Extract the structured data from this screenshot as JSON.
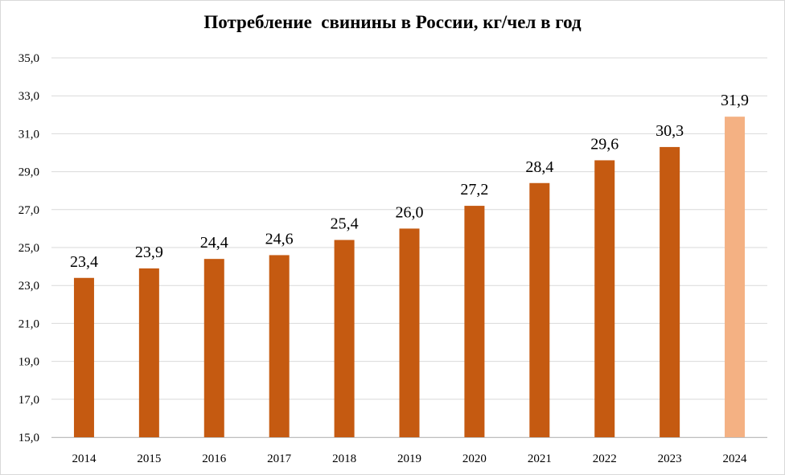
{
  "chart_data": {
    "type": "bar",
    "title": "Потребление  свинины в России, кг/чел в год",
    "categories": [
      "2014",
      "2015",
      "2016",
      "2017",
      "2018",
      "2019",
      "2020",
      "2021",
      "2022",
      "2023",
      "2024"
    ],
    "values": [
      23.4,
      23.9,
      24.4,
      24.6,
      25.4,
      26.0,
      27.2,
      28.4,
      29.6,
      30.3,
      31.9
    ],
    "data_labels": [
      "23,4",
      "23,9",
      "24,4",
      "24,6",
      "25,4",
      "26,0",
      "27,2",
      "28,4",
      "29,6",
      "30,3",
      "31,9"
    ],
    "ylim": [
      15,
      35
    ],
    "yticks": [
      "15,0",
      "17,0",
      "19,0",
      "21,0",
      "23,0",
      "25,0",
      "27,0",
      "29,0",
      "31,0",
      "33,0",
      "35,0"
    ],
    "xlabel": "",
    "ylabel": "",
    "grid": true,
    "legend": "none",
    "colors": {
      "bar": "#C55A11",
      "highlight_bar": "#F4B183",
      "grid": "#d9d9d9"
    },
    "highlighted_category": "2024"
  }
}
